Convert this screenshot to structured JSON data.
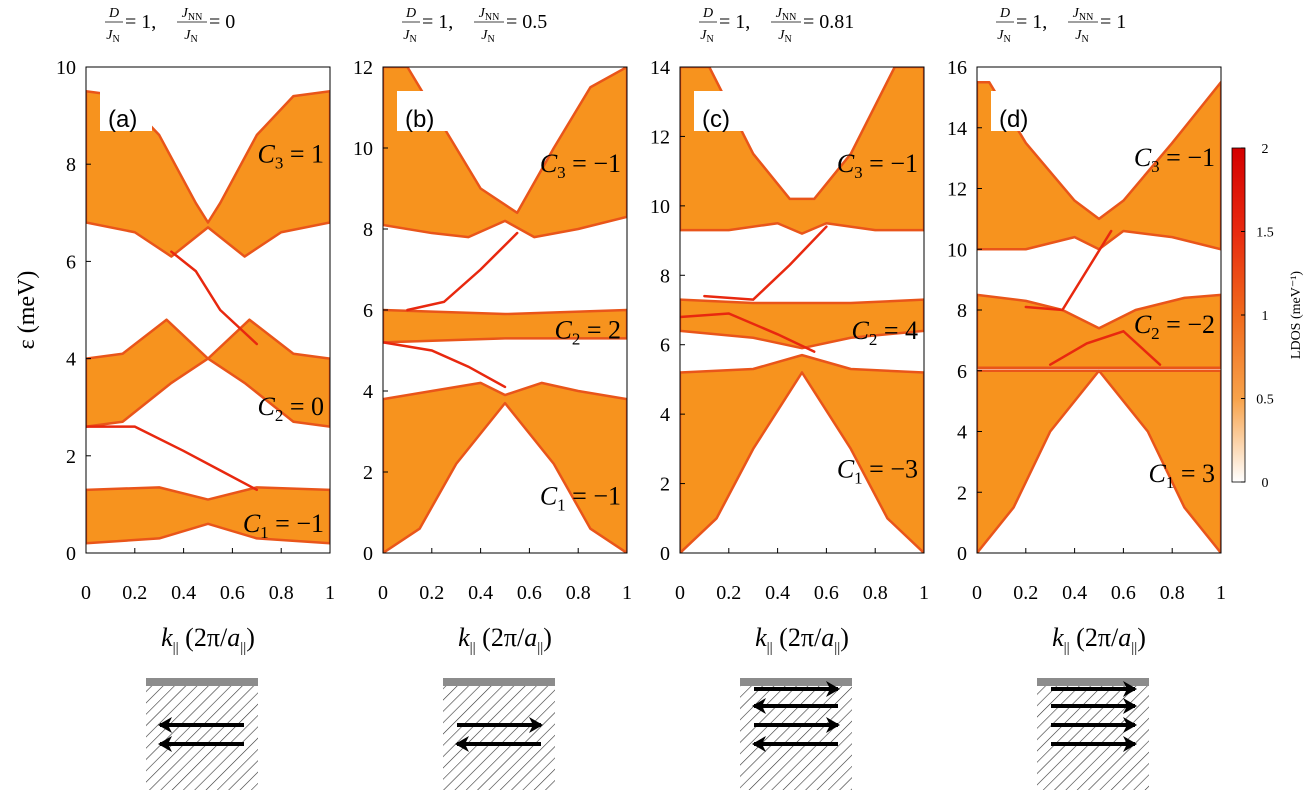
{
  "figure": {
    "ylabel": "ε (meV)",
    "colorbar": {
      "label": "LDOS (meV⁻¹)",
      "ticks": [
        "0",
        "0.5",
        "1",
        "1.5",
        "2"
      ],
      "range": [
        0,
        2
      ],
      "colors": [
        "#ffffff",
        "#f7a24a",
        "#f06a1c",
        "#e82a10",
        "#d40000"
      ]
    },
    "colors": {
      "band_fill": "#f7931e",
      "band_dark": "#e9551a",
      "edge_line": "#e8280f",
      "substrate_bar": "#8c8c8c",
      "hatch": "#333333"
    }
  },
  "chart_data": [
    {
      "type": "heatmap",
      "panel_label": "(a)",
      "title": {
        "d": "D",
        "jn": "J",
        "jn_sub": "N",
        "eq1": " = 1, ",
        "jnn": "J",
        "jnn_sub": "NN",
        "eq2": " = 0"
      },
      "xlabel": {
        "k": "k",
        "k_sub": "||",
        "unit": "(2π/a",
        "unit_sub": "||",
        "close": ")"
      },
      "x_ticks": [
        "0",
        "0.2",
        "0.4",
        "0.6",
        "0.8",
        "1"
      ],
      "xlim": [
        0,
        1
      ],
      "ylim": [
        0,
        10
      ],
      "y_ticks": [
        "0",
        "2",
        "4",
        "6",
        "8",
        "10"
      ],
      "y_tick_values": [
        0,
        2,
        4,
        6,
        8,
        10
      ],
      "chern": [
        {
          "name": "C",
          "sub": "3",
          "value": " = 1",
          "energy": 8.2
        },
        {
          "name": "C",
          "sub": "2",
          "value": " = 0",
          "energy": 3.0
        },
        {
          "name": "C",
          "sub": "1",
          "value": " = −1",
          "energy": 0.6
        }
      ],
      "bands": [
        {
          "lower": [
            [
              0,
              6.8
            ],
            [
              0.2,
              6.6
            ],
            [
              0.35,
              6.1
            ],
            [
              0.5,
              6.7
            ],
            [
              0.65,
              6.1
            ],
            [
              0.8,
              6.6
            ],
            [
              1,
              6.8
            ]
          ],
          "upper": [
            [
              0,
              9.5
            ],
            [
              0.15,
              9.4
            ],
            [
              0.3,
              8.6
            ],
            [
              0.45,
              7.2
            ],
            [
              0.5,
              6.8
            ],
            [
              0.55,
              7.2
            ],
            [
              0.7,
              8.6
            ],
            [
              0.85,
              9.4
            ],
            [
              1,
              9.5
            ]
          ]
        },
        {
          "lower": [
            [
              0,
              2.6
            ],
            [
              0.15,
              2.7
            ],
            [
              0.35,
              3.5
            ],
            [
              0.5,
              4.0
            ],
            [
              0.65,
              3.5
            ],
            [
              0.85,
              2.7
            ],
            [
              1,
              2.6
            ]
          ],
          "upper": [
            [
              0,
              4.0
            ],
            [
              0.15,
              4.1
            ],
            [
              0.33,
              4.8
            ],
            [
              0.5,
              4.0
            ],
            [
              0.67,
              4.8
            ],
            [
              0.85,
              4.1
            ],
            [
              1,
              4.0
            ]
          ]
        },
        {
          "lower": [
            [
              0,
              0.2
            ],
            [
              0.3,
              0.3
            ],
            [
              0.5,
              0.6
            ],
            [
              0.7,
              0.3
            ],
            [
              1,
              0.2
            ]
          ],
          "upper": [
            [
              0,
              1.3
            ],
            [
              0.3,
              1.35
            ],
            [
              0.5,
              1.1
            ],
            [
              0.7,
              1.35
            ],
            [
              1,
              1.3
            ]
          ]
        }
      ],
      "edge_states": [
        [
          [
            0.35,
            6.2
          ],
          [
            0.45,
            5.8
          ],
          [
            0.55,
            5.0
          ],
          [
            0.7,
            4.3
          ]
        ],
        [
          [
            0.0,
            2.6
          ],
          [
            0.2,
            2.6
          ],
          [
            0.4,
            2.1
          ],
          [
            0.55,
            1.7
          ],
          [
            0.7,
            1.3
          ]
        ]
      ],
      "arrows": {
        "count": 2,
        "directions": [
          "left",
          "left"
        ]
      }
    },
    {
      "type": "heatmap",
      "panel_label": "(b)",
      "title": {
        "d": "D",
        "jn": "J",
        "jn_sub": "N",
        "eq1": " = 1, ",
        "jnn": "J",
        "jnn_sub": "NN",
        "eq2": " = 0.5"
      },
      "xlabel": {
        "k": "k",
        "k_sub": "||",
        "unit": "(2π/a",
        "unit_sub": "||",
        "close": ")"
      },
      "x_ticks": [
        "0",
        "0.2",
        "0.4",
        "0.6",
        "0.8",
        "1"
      ],
      "xlim": [
        0,
        1
      ],
      "ylim": [
        0,
        12
      ],
      "y_ticks": [
        "0",
        "2",
        "4",
        "6",
        "8",
        "10",
        "12"
      ],
      "y_tick_values": [
        0,
        2,
        4,
        6,
        8,
        10,
        12
      ],
      "chern": [
        {
          "name": "C",
          "sub": "3",
          "value": " = −1",
          "energy": 9.6
        },
        {
          "name": "C",
          "sub": "2",
          "value": " = 2",
          "energy": 5.5
        },
        {
          "name": "C",
          "sub": "1",
          "value": " = −1",
          "energy": 1.4
        }
      ],
      "bands": [
        {
          "lower": [
            [
              0,
              8.1
            ],
            [
              0.2,
              7.9
            ],
            [
              0.35,
              7.8
            ],
            [
              0.5,
              8.2
            ],
            [
              0.62,
              7.8
            ],
            [
              0.8,
              8.0
            ],
            [
              1,
              8.3
            ]
          ],
          "upper": [
            [
              0,
              12
            ],
            [
              0.1,
              12
            ],
            [
              0.25,
              10.5
            ],
            [
              0.4,
              9.0
            ],
            [
              0.55,
              8.4
            ],
            [
              0.7,
              10.0
            ],
            [
              0.85,
              11.5
            ],
            [
              1,
              12
            ]
          ]
        },
        {
          "lower": [
            [
              0,
              5.2
            ],
            [
              0.5,
              5.3
            ],
            [
              1,
              5.3
            ]
          ],
          "upper": [
            [
              0,
              6.0
            ],
            [
              0.5,
              5.9
            ],
            [
              1,
              6.0
            ]
          ]
        },
        {
          "lower": [
            [
              0,
              0
            ],
            [
              0.15,
              0.6
            ],
            [
              0.3,
              2.2
            ],
            [
              0.5,
              3.7
            ],
            [
              0.7,
              2.2
            ],
            [
              0.85,
              0.6
            ],
            [
              1,
              0
            ]
          ],
          "upper": [
            [
              0,
              3.8
            ],
            [
              0.2,
              4.0
            ],
            [
              0.4,
              4.2
            ],
            [
              0.5,
              3.9
            ],
            [
              0.65,
              4.2
            ],
            [
              0.8,
              4.0
            ],
            [
              1,
              3.8
            ]
          ]
        }
      ],
      "edge_states": [
        [
          [
            0.1,
            6.0
          ],
          [
            0.25,
            6.2
          ],
          [
            0.4,
            7.0
          ],
          [
            0.55,
            7.9
          ]
        ],
        [
          [
            0.0,
            5.2
          ],
          [
            0.2,
            5.0
          ],
          [
            0.35,
            4.6
          ],
          [
            0.5,
            4.1
          ]
        ]
      ],
      "arrows": {
        "count": 2,
        "directions": [
          "right",
          "left"
        ]
      }
    },
    {
      "type": "heatmap",
      "panel_label": "(c)",
      "title": {
        "d": "D",
        "jn": "J",
        "jn_sub": "N",
        "eq1": " = 1, ",
        "jnn": "J",
        "jnn_sub": "NN",
        "eq2": " = 0.81"
      },
      "xlabel": {
        "k": "k",
        "k_sub": "||",
        "unit": "(2π/a",
        "unit_sub": "||",
        "close": ")"
      },
      "x_ticks": [
        "0",
        "0.2",
        "0.4",
        "0.6",
        "0.8",
        "1"
      ],
      "xlim": [
        0,
        1
      ],
      "ylim": [
        0,
        14
      ],
      "y_ticks": [
        "0",
        "2",
        "4",
        "6",
        "8",
        "10",
        "12",
        "14"
      ],
      "y_tick_values": [
        0,
        2,
        4,
        6,
        8,
        10,
        12,
        14
      ],
      "chern": [
        {
          "name": "C",
          "sub": "3",
          "value": " = −1",
          "energy": 11.2
        },
        {
          "name": "C",
          "sub": "2",
          "value": " = 4",
          "energy": 6.4
        },
        {
          "name": "C",
          "sub": "1",
          "value": " = −3",
          "energy": 2.4
        }
      ],
      "bands": [
        {
          "lower": [
            [
              0,
              9.3
            ],
            [
              0.2,
              9.3
            ],
            [
              0.4,
              9.5
            ],
            [
              0.5,
              9.2
            ],
            [
              0.6,
              9.5
            ],
            [
              0.8,
              9.3
            ],
            [
              1,
              9.3
            ]
          ],
          "upper": [
            [
              0,
              14
            ],
            [
              0.12,
              14
            ],
            [
              0.3,
              11.5
            ],
            [
              0.45,
              10.2
            ],
            [
              0.55,
              10.2
            ],
            [
              0.7,
              11.5
            ],
            [
              0.88,
              14
            ],
            [
              1,
              14
            ]
          ]
        },
        {
          "lower": [
            [
              0,
              6.4
            ],
            [
              0.3,
              6.2
            ],
            [
              0.5,
              5.9
            ],
            [
              0.7,
              6.2
            ],
            [
              1,
              6.4
            ]
          ],
          "upper": [
            [
              0,
              7.3
            ],
            [
              0.3,
              7.2
            ],
            [
              0.5,
              7.2
            ],
            [
              0.7,
              7.2
            ],
            [
              1,
              7.3
            ]
          ]
        },
        {
          "lower": [
            [
              0,
              0
            ],
            [
              0.15,
              1.0
            ],
            [
              0.3,
              3.0
            ],
            [
              0.5,
              5.2
            ],
            [
              0.7,
              3.0
            ],
            [
              0.85,
              1.0
            ],
            [
              1,
              0
            ]
          ],
          "upper": [
            [
              0,
              5.2
            ],
            [
              0.3,
              5.3
            ],
            [
              0.5,
              5.7
            ],
            [
              0.7,
              5.3
            ],
            [
              1,
              5.2
            ]
          ]
        }
      ],
      "edge_states": [
        [
          [
            0.1,
            7.4
          ],
          [
            0.3,
            7.3
          ],
          [
            0.45,
            8.3
          ],
          [
            0.6,
            9.4
          ]
        ],
        [
          [
            0.0,
            6.8
          ],
          [
            0.2,
            6.9
          ],
          [
            0.4,
            6.3
          ],
          [
            0.55,
            5.8
          ]
        ]
      ],
      "arrows": {
        "count": 4,
        "directions": [
          "right",
          "left",
          "right",
          "left"
        ]
      }
    },
    {
      "type": "heatmap",
      "panel_label": "(d)",
      "title": {
        "d": "D",
        "jn": "J",
        "jn_sub": "N",
        "eq1": " = 1, ",
        "jnn": "J",
        "jnn_sub": "NN",
        "eq2": " = 1"
      },
      "xlabel": {
        "k": "k",
        "k_sub": "||",
        "unit": "(2π/a",
        "unit_sub": "||",
        "close": ")"
      },
      "x_ticks": [
        "0",
        "0.2",
        "0.4",
        "0.6",
        "0.8",
        "1"
      ],
      "xlim": [
        0,
        1
      ],
      "ylim": [
        0,
        16
      ],
      "y_ticks": [
        "0",
        "2",
        "4",
        "6",
        "8",
        "10",
        "12",
        "14",
        "16"
      ],
      "y_tick_values": [
        0,
        2,
        4,
        6,
        8,
        10,
        12,
        14,
        16
      ],
      "chern": [
        {
          "name": "C",
          "sub": "3",
          "value": " = −1",
          "energy": 13.0
        },
        {
          "name": "C",
          "sub": "2",
          "value": " = −2",
          "energy": 7.5
        },
        {
          "name": "C",
          "sub": "1",
          "value": " = 3",
          "energy": 2.6
        }
      ],
      "bands": [
        {
          "lower": [
            [
              0,
              10.0
            ],
            [
              0.2,
              10.0
            ],
            [
              0.4,
              10.4
            ],
            [
              0.5,
              10.0
            ],
            [
              0.6,
              10.6
            ],
            [
              0.8,
              10.4
            ],
            [
              1,
              10.0
            ]
          ],
          "upper": [
            [
              0,
              15.5
            ],
            [
              0.05,
              15.5
            ],
            [
              0.2,
              13.5
            ],
            [
              0.4,
              11.6
            ],
            [
              0.5,
              11.0
            ],
            [
              0.6,
              11.6
            ],
            [
              0.8,
              13.5
            ],
            [
              1,
              15.5
            ]
          ]
        },
        {
          "lower": [
            [
              0,
              6.1
            ],
            [
              0.3,
              6.1
            ],
            [
              0.5,
              6.1
            ],
            [
              0.7,
              6.1
            ],
            [
              1,
              6.1
            ]
          ],
          "upper": [
            [
              0,
              8.5
            ],
            [
              0.2,
              8.3
            ],
            [
              0.35,
              8.0
            ],
            [
              0.5,
              7.4
            ],
            [
              0.65,
              8.0
            ],
            [
              0.85,
              8.4
            ],
            [
              1,
              8.5
            ]
          ]
        },
        {
          "lower": [
            [
              0,
              0
            ],
            [
              0.15,
              1.5
            ],
            [
              0.3,
              4.0
            ],
            [
              0.5,
              6.0
            ],
            [
              0.7,
              4.0
            ],
            [
              0.85,
              1.5
            ],
            [
              1,
              0
            ]
          ],
          "upper": [
            [
              0,
              6.0
            ],
            [
              0.5,
              6.0
            ],
            [
              1,
              6.0
            ]
          ]
        }
      ],
      "edge_states": [
        [
          [
            0.2,
            8.1
          ],
          [
            0.35,
            8.0
          ],
          [
            0.45,
            9.3
          ],
          [
            0.55,
            10.6
          ]
        ],
        [
          [
            0.3,
            6.2
          ],
          [
            0.45,
            6.9
          ],
          [
            0.6,
            7.3
          ],
          [
            0.75,
            6.2
          ]
        ]
      ],
      "arrows": {
        "count": 4,
        "directions": [
          "right",
          "right",
          "right",
          "right"
        ]
      }
    }
  ]
}
